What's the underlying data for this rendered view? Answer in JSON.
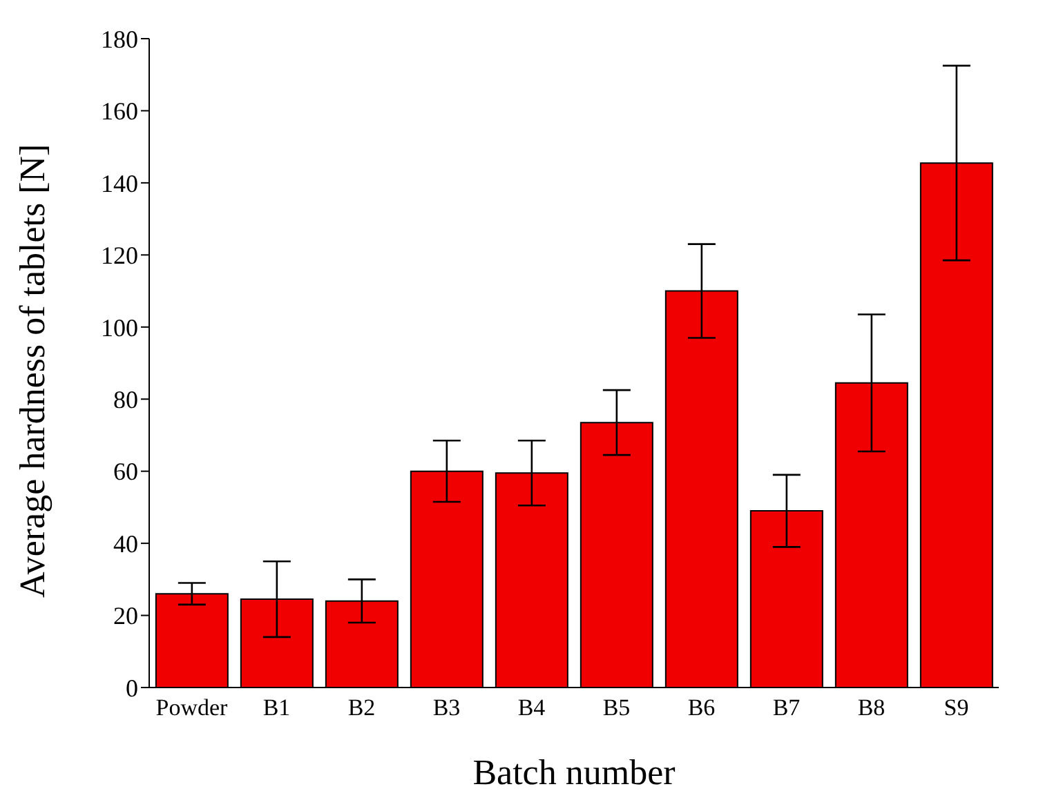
{
  "chart_data": {
    "type": "bar",
    "xlabel": "Batch number",
    "ylabel": "Average hardness of tablets [N]",
    "categories": [
      "Powder",
      "B1",
      "B2",
      "B3",
      "B4",
      "B5",
      "B6",
      "B7",
      "B8",
      "S9"
    ],
    "values": [
      26,
      24.5,
      24,
      60,
      59.5,
      73.5,
      110,
      49,
      84.5,
      145.5
    ],
    "errors": [
      3,
      10.5,
      6,
      8.5,
      9,
      9,
      13,
      10,
      19,
      27
    ],
    "color": "#f00000",
    "ylim": [
      0,
      180
    ],
    "yticks": [
      0,
      20,
      40,
      60,
      80,
      100,
      120,
      140,
      160,
      180
    ],
    "grid": false,
    "legend": false
  }
}
